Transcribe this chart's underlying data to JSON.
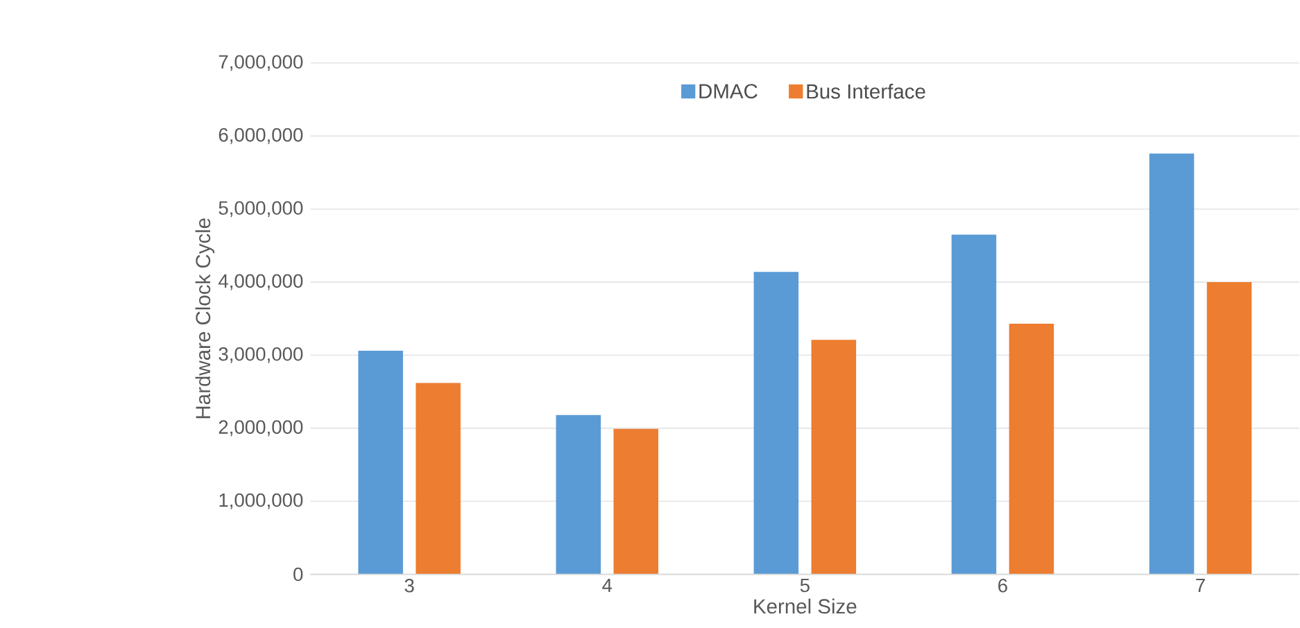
{
  "chart_data": {
    "type": "bar",
    "xlabel": "Kernel Size",
    "ylabel": "Hardware Clock Cycle",
    "categories": [
      "3",
      "4",
      "5",
      "6",
      "7"
    ],
    "series": [
      {
        "name": "DMAC",
        "color": "#5b9bd5",
        "values": [
          3060000,
          2180000,
          4140000,
          4650000,
          5760000
        ]
      },
      {
        "name": "Bus Interface",
        "color": "#ed7d31",
        "values": [
          2620000,
          1990000,
          3210000,
          3430000,
          4000000
        ]
      }
    ],
    "ylim": [
      0,
      7000000
    ],
    "yticks": [
      0,
      {
        "value": 1000000,
        "label": "1,000,000"
      },
      {
        "value": 2000000,
        "label": "2,000,000"
      },
      {
        "value": 3000000,
        "label": "3,000,000"
      },
      {
        "value": 4000000,
        "label": "4,000,000"
      },
      {
        "value": 5000000,
        "label": "5,000,000"
      },
      {
        "value": 6000000,
        "label": "6,000,000"
      },
      {
        "value": 7000000,
        "label": "7,000,000"
      }
    ],
    "grid": "y",
    "legend": "top"
  }
}
